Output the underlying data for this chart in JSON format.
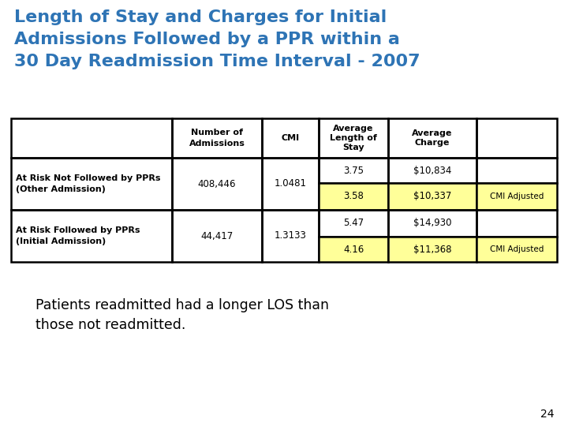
{
  "title_line1": "Length of Stay and Charges for Initial",
  "title_line2": "Admissions Followed by a PPR within a",
  "title_line3": "30 Day Readmission Time Interval - 2007",
  "title_color": "#2E74B5",
  "background_color": "#FFFFFF",
  "subtitle": "Patients readmitted had a longer LOS than\nthose not readmitted.",
  "subtitle_color": "#000000",
  "page_number": "24",
  "row1_label": "At Risk Not Followed by PPRs\n(Other Admission)",
  "row2_label": "At Risk Followed by PPRs\n(Initial Admission)",
  "row1_admissions": "408,446",
  "row1_cmi": "1.0481",
  "row1_los_unadj": "3.75",
  "row1_charge_unadj": "$10,834",
  "row1_los_adj": "3.58",
  "row1_charge_adj": "$10,337",
  "row2_admissions": "44,417",
  "row2_cmi": "1.3133",
  "row2_los_unadj": "5.47",
  "row2_charge_unadj": "$14,930",
  "row2_los_adj": "4.16",
  "row2_charge_adj": "$11,368",
  "cmi_adj_label": "CMI Adjusted",
  "highlight_color": "#FFFF99",
  "table_border_color": "#000000"
}
